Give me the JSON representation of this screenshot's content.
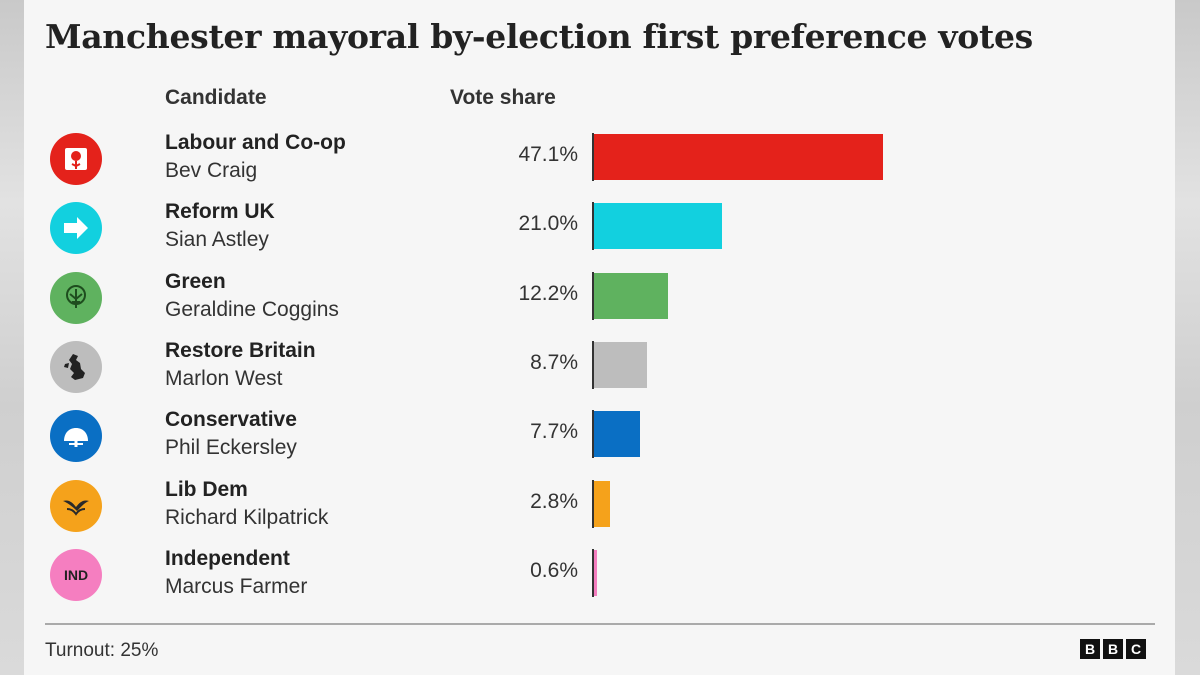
{
  "title": "Manchester mayoral by-election first preference votes",
  "columns": {
    "candidate": "Candidate",
    "share": "Vote share"
  },
  "footnote": "Turnout: 25%",
  "brand": [
    "B",
    "B",
    "C"
  ],
  "chart_data": {
    "type": "bar",
    "orientation": "horizontal",
    "title": "Manchester mayoral by-election first preference votes",
    "xlabel": "Vote share",
    "ylabel": "Candidate",
    "xlim": [
      0,
      100
    ],
    "grid": false,
    "categories": [
      "Labour and Co-op",
      "Reform UK",
      "Green",
      "Restore Britain",
      "Conservative",
      "Lib Dem",
      "Independent"
    ],
    "values": [
      47.1,
      21.0,
      12.2,
      8.7,
      7.7,
      2.8,
      0.6
    ],
    "rows": [
      {
        "party": "Labour and Co-op",
        "candidate": "Bev Craig",
        "label": "47.1%",
        "value": 47.1,
        "color": "#e4221b",
        "icon": "labour-rose-icon"
      },
      {
        "party": "Reform UK",
        "candidate": "Sian Astley",
        "label": "21.0%",
        "value": 21.0,
        "color": "#12d0df",
        "icon": "reform-arrow-icon"
      },
      {
        "party": "Green",
        "candidate": "Geraldine Coggins",
        "label": "12.2%",
        "value": 12.2,
        "color": "#5fb25f",
        "icon": "green-tree-icon"
      },
      {
        "party": "Restore Britain",
        "candidate": "Marlon West",
        "label": "8.7%",
        "value": 8.7,
        "color": "#bdbdbd",
        "icon": "britain-map-icon"
      },
      {
        "party": "Conservative",
        "candidate": "Phil Eckersley",
        "label": "7.7%",
        "value": 7.7,
        "color": "#0a6fc4",
        "icon": "conservative-tree-icon"
      },
      {
        "party": "Lib Dem",
        "candidate": "Richard Kilpatrick",
        "label": "2.8%",
        "value": 2.8,
        "color": "#f5a21b",
        "icon": "libdem-bird-icon"
      },
      {
        "party": "Independent",
        "candidate": "Marcus Farmer",
        "label": "0.6%",
        "value": 0.6,
        "color": "#f57ec0",
        "icon": "independent-icon",
        "icon_text": "IND"
      }
    ]
  }
}
